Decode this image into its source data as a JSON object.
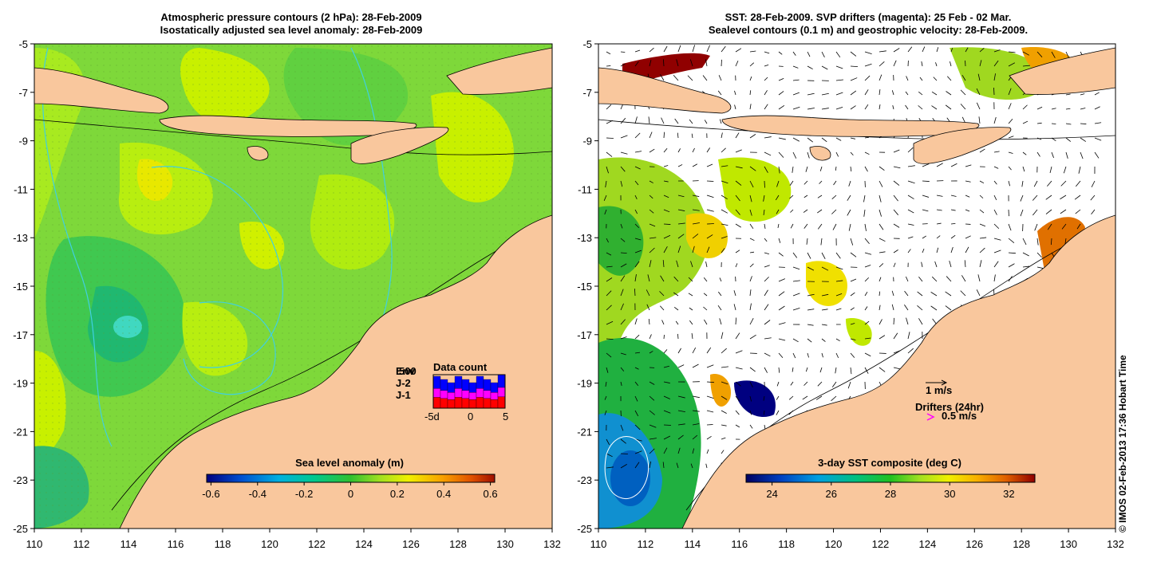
{
  "left_panel": {
    "title_line1": "Atmospheric pressure contours (2 hPa): 28-Feb-2009",
    "title_line2": "Isostatically adjusted sea level anomaly: 28-Feb-2009",
    "colorbar_title": "Sea level anomaly (m)",
    "colorbar_ticks": [
      "-0.6",
      "-0.4",
      "-0.2",
      "0",
      "0.2",
      "0.4",
      "0.6"
    ],
    "legend": {
      "labels": [
        "Env",
        "J-2",
        "J-1"
      ],
      "colors": [
        "#0000ff",
        "#ff00ff",
        "#ff0000"
      ],
      "data_count_title": "Data count",
      "count_label": "500",
      "x_ticks": [
        "-5d",
        "0",
        "5"
      ]
    }
  },
  "right_panel": {
    "title_line1": "SST: 28-Feb-2009. SVP drifters (magenta): 25 Feb - 02 Mar.",
    "title_line2": "Sealevel contours (0.1 m) and geostrophic velocity: 28-Feb-2009.",
    "colorbar_title": "3-day SST composite (deg C)",
    "colorbar_ticks": [
      "24",
      "26",
      "28",
      "30",
      "32"
    ],
    "velocity_scale_label": "1 m/s",
    "drifters_label": "Drifters (24hr)",
    "drifter_speed_label": "0.5 m/s"
  },
  "axes": {
    "x_ticks": [
      "110",
      "112",
      "114",
      "116",
      "118",
      "120",
      "122",
      "124",
      "126",
      "128",
      "130",
      "132"
    ],
    "y_ticks": [
      "-5",
      "-7",
      "-9",
      "-11",
      "-13",
      "-15",
      "-17",
      "-19",
      "-21",
      "-23",
      "-25"
    ]
  },
  "colors": {
    "land": "#f9c79d",
    "sla_cmap": [
      "#00007f",
      "#0040c0",
      "#00a0e0",
      "#00c8a0",
      "#20c040",
      "#80e020",
      "#c8f000",
      "#f0e000",
      "#f8a000",
      "#e05000",
      "#a01000"
    ],
    "sst_cmap": [
      "#000060",
      "#0030c0",
      "#00a0e0",
      "#00c080",
      "#20c020",
      "#a0e020",
      "#f0f000",
      "#f8c000",
      "#f08000",
      "#d04000",
      "#900000"
    ]
  },
  "copyright": "© IMOS 02-Feb-2013 17:36 Hobart Time"
}
